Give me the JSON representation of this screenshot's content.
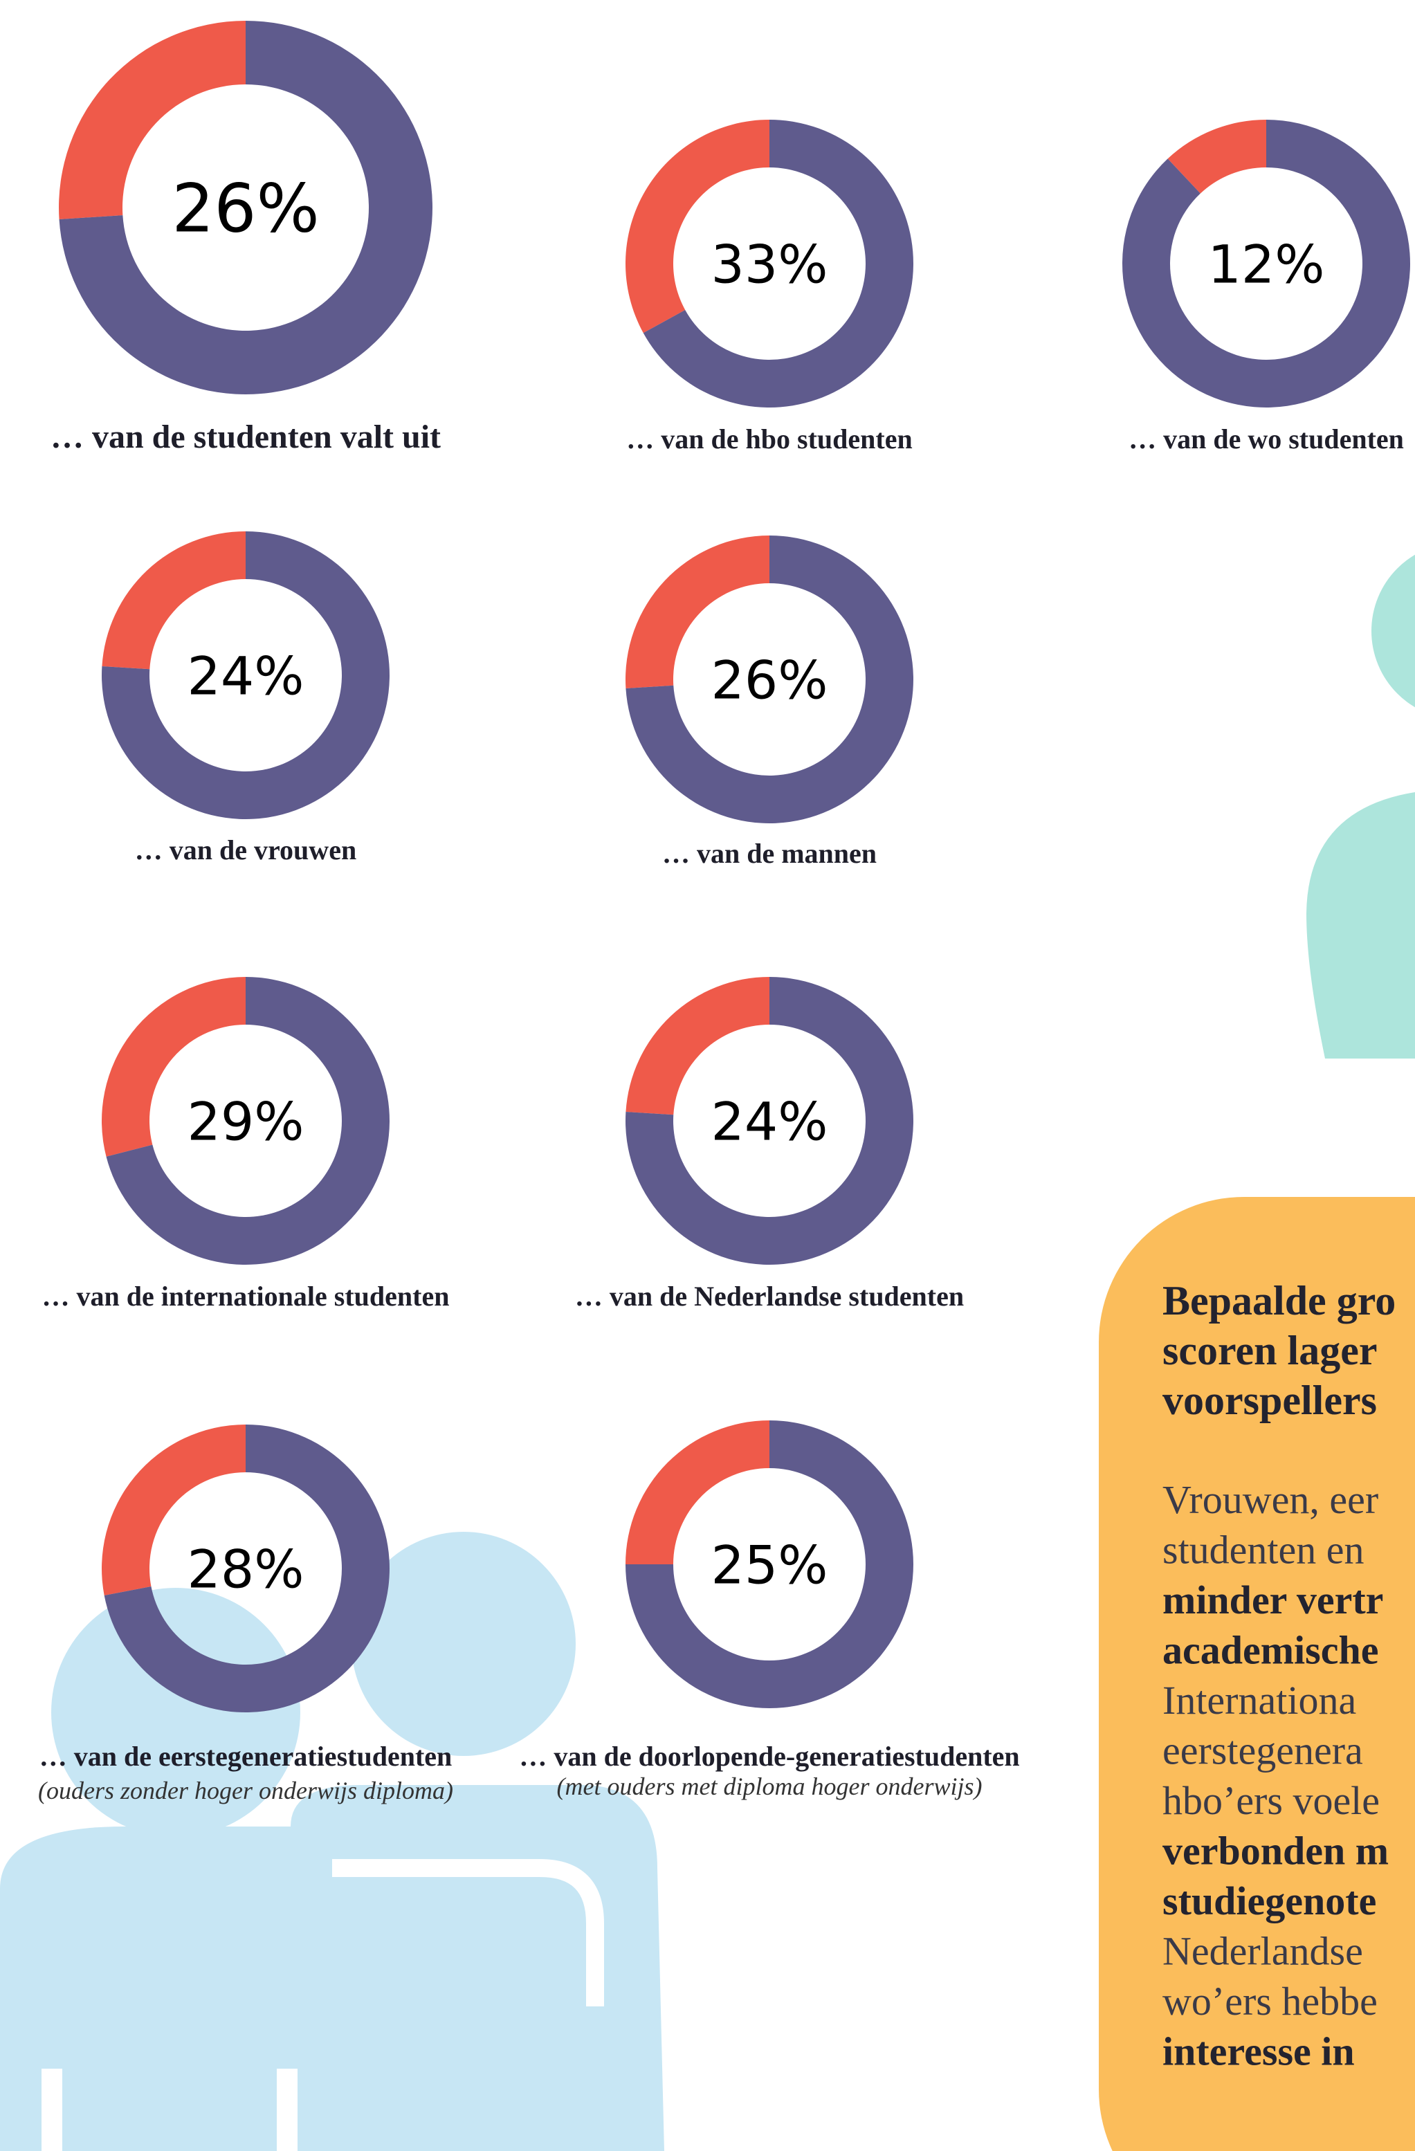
{
  "chart_data": [
    {
      "type": "pie",
      "title": "… van de studenten valt uit",
      "values": [
        26,
        74
      ],
      "value_labels": [
        "26%",
        null
      ],
      "colors": [
        "#ef5a4a",
        "#5f5b8d"
      ]
    },
    {
      "type": "pie",
      "title": "… van de hbo studenten",
      "values": [
        33,
        67
      ],
      "value_labels": [
        "33%",
        null
      ],
      "colors": [
        "#ef5a4a",
        "#5f5b8d"
      ]
    },
    {
      "type": "pie",
      "title": "… van de wo studenten",
      "values": [
        12,
        88
      ],
      "value_labels": [
        "12%",
        null
      ],
      "colors": [
        "#ef5a4a",
        "#5f5b8d"
      ]
    },
    {
      "type": "pie",
      "title": "… van de vrouwen",
      "values": [
        24,
        76
      ],
      "value_labels": [
        "24%",
        null
      ],
      "colors": [
        "#ef5a4a",
        "#5f5b8d"
      ]
    },
    {
      "type": "pie",
      "title": "… van de mannen",
      "values": [
        26,
        74
      ],
      "value_labels": [
        "26%",
        null
      ],
      "colors": [
        "#ef5a4a",
        "#5f5b8d"
      ]
    },
    {
      "type": "pie",
      "title": "… van de internationale studenten",
      "values": [
        29,
        71
      ],
      "value_labels": [
        "29%",
        null
      ],
      "colors": [
        "#ef5a4a",
        "#5f5b8d"
      ]
    },
    {
      "type": "pie",
      "title": "… van de Nederlandse studenten",
      "values": [
        24,
        76
      ],
      "value_labels": [
        "24%",
        null
      ],
      "colors": [
        "#ef5a4a",
        "#5f5b8d"
      ]
    },
    {
      "type": "pie",
      "title": "… van de eerstegeneratiestudenten",
      "subtitle": "(ouders zonder hoger onderwijs diploma)",
      "values": [
        28,
        72
      ],
      "value_labels": [
        "28%",
        null
      ],
      "colors": [
        "#ef5a4a",
        "#5f5b8d"
      ]
    },
    {
      "type": "pie",
      "title": "… van de doorlopende-generatiestudenten",
      "subtitle": "(met ouders met diploma hoger onderwijs)",
      "values": [
        25,
        75
      ],
      "value_labels": [
        "25%",
        null
      ],
      "colors": [
        "#ef5a4a",
        "#5f5b8d"
      ]
    }
  ],
  "panel": {
    "heading": [
      "Bepaalde gro",
      "scoren lager",
      "voorspellers"
    ],
    "lines": [
      {
        "text": "Vrouwen, eer",
        "bold": false
      },
      {
        "text": "studenten en",
        "bold": false
      },
      {
        "text": "minder vertr",
        "bold": true
      },
      {
        "text": "academische",
        "bold": true
      },
      {
        "text": "Internationa",
        "bold": false
      },
      {
        "text": "eerstegenera",
        "bold": false
      },
      {
        "text": "hbo’ers voele",
        "bold": false
      },
      {
        "text": "verbonden m",
        "bold": true
      },
      {
        "text": "studiegenote",
        "bold": true
      },
      {
        "text": "Nederlandse",
        "bold": false
      },
      {
        "text": "wo’ers hebbe",
        "bold": false
      },
      {
        "text": "interesse in",
        "bold": true
      }
    ]
  }
}
